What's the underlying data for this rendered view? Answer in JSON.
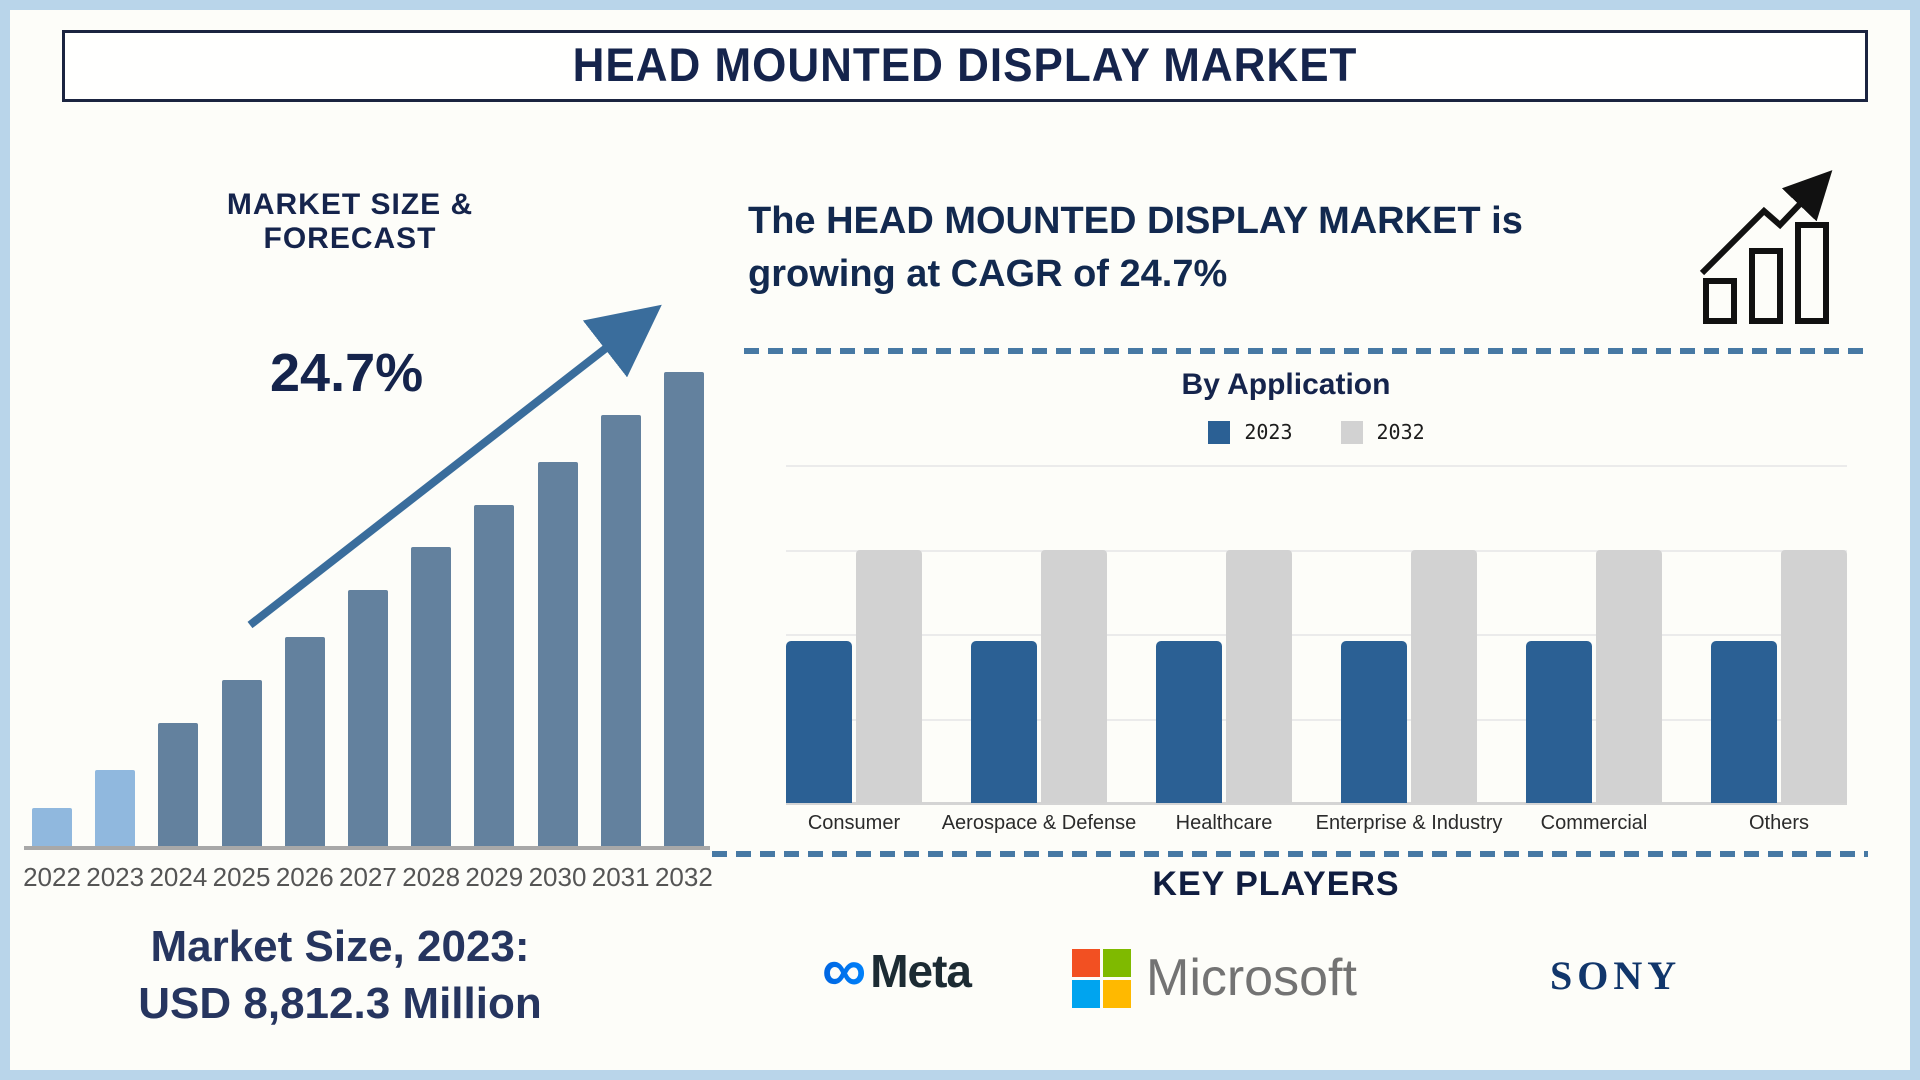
{
  "page": {
    "title": "HEAD MOUNTED DISPLAY MARKET"
  },
  "left_panel": {
    "heading": "MARKET SIZE & FORECAST",
    "cagr_annotation": "24.7%",
    "market_size_line1": "Market Size, 2023:",
    "market_size_line2": "USD 8,812.3 Million"
  },
  "right_panel": {
    "headline_line1": "The HEAD MOUNTED DISPLAY MARKET is",
    "headline_line2": "growing at CAGR of 24.7%",
    "application_chart_title": "By Application",
    "key_players_heading": "KEY PLAYERS",
    "players": {
      "meta": "Meta",
      "meta_infinity_glyph": "∞",
      "microsoft": "Microsoft",
      "sony": "SONY"
    }
  },
  "colors": {
    "navy": "#15244c",
    "frame_blue": "#b9d5ea",
    "forecast_bar": "#63819e",
    "forecast_bar_highlight": "#90b8de",
    "trend_arrow": "#3a6d9c",
    "app_2023_blue": "#2b6094",
    "app_2032_gray": "#d2d2d2",
    "divider_dash_blue": "#4779a4",
    "axis_gray": "#a8a8a8",
    "year_label_gray": "#555555",
    "microsoft_text_gray": "#737373",
    "meta_text_dark": "#1c2b33",
    "meta_blue": "#0668e1",
    "sony_navy": "#11366b",
    "ms_red": "#f25022",
    "ms_green": "#7fba00",
    "ms_blue": "#00a4ef",
    "ms_yellow": "#ffb900"
  },
  "chart_data": [
    {
      "type": "bar",
      "title": "MARKET SIZE & FORECAST",
      "xlabel": "Year",
      "ylabel": "Market size (value axis unlabeled)",
      "categories": [
        "2022",
        "2023",
        "2024",
        "2025",
        "2026",
        "2027",
        "2028",
        "2029",
        "2030",
        "2031",
        "2032"
      ],
      "values_relative_pct": [
        8,
        16,
        26,
        35,
        44,
        54,
        63,
        72,
        81,
        91,
        100
      ],
      "highlighted_categories": [
        "2022",
        "2023"
      ],
      "known_point": {
        "year": "2023",
        "value": "USD 8,812.3 Million"
      },
      "annotations": [
        "24.7% CAGR shown with rising trend arrow"
      ],
      "grid": false,
      "legend": false
    },
    {
      "type": "bar",
      "title": "By Application",
      "categories": [
        "Consumer",
        "Aerospace & Defense",
        "Healthcare",
        "Enterprise & Industry",
        "Commercial",
        "Others"
      ],
      "series": [
        {
          "name": "2023",
          "values_relative_pct": [
            48,
            48,
            48,
            48,
            48,
            48
          ]
        },
        {
          "name": "2032",
          "values_relative_pct": [
            75,
            75,
            75,
            75,
            75,
            75
          ]
        }
      ],
      "ylim_pct": [
        0,
        100
      ],
      "grid": true,
      "legend_position": "top-center",
      "note": "Stylized chart: every category drawn with identical bar heights; 2032 bars taller than 2023 bars."
    }
  ]
}
